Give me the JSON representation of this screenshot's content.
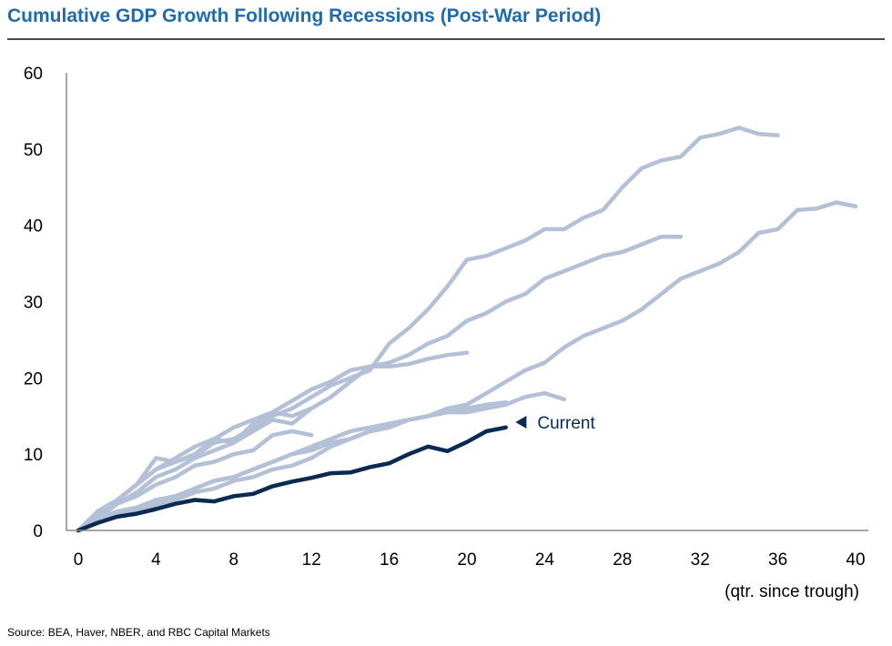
{
  "title": "Cumulative GDP Growth Following Recessions (Post-War Period)",
  "source": "Source: BEA, Haver, NBER, and RBC Capital Markets",
  "chart_data": {
    "type": "line",
    "title": "Cumulative GDP Growth Following Recessions (Post-War Period)",
    "xlabel": "(qtr. since trough)",
    "ylabel": "",
    "xlim": [
      0,
      40
    ],
    "ylim": [
      0,
      60
    ],
    "x_ticks": [
      0,
      4,
      8,
      12,
      16,
      20,
      24,
      28,
      32,
      36,
      40
    ],
    "y_ticks": [
      0,
      10,
      20,
      30,
      40,
      50,
      60
    ],
    "grid": false,
    "legend": "none",
    "colors": {
      "past_recoveries": "#b4c0d6",
      "current": "#0b2a52",
      "title": "#1f6bb0"
    },
    "annotation": {
      "text": "Current",
      "x": 22.5,
      "y": 14.2
    },
    "series": [
      {
        "style": "past",
        "x": [
          0,
          1,
          2,
          3,
          4,
          5,
          6,
          7,
          8,
          9,
          10,
          11,
          12,
          13,
          14,
          15,
          16,
          17,
          18,
          19,
          20,
          21,
          22,
          23,
          24,
          25,
          26,
          27,
          28,
          29,
          30,
          31,
          32,
          33,
          34,
          35,
          36
        ],
        "y": [
          0,
          2,
          4,
          6,
          8,
          9,
          9.8,
          11.5,
          12,
          13.5,
          15,
          16,
          17.5,
          19,
          20,
          21,
          24.5,
          26.5,
          29,
          32,
          35.5,
          36,
          37,
          38,
          39.5,
          39.5,
          41,
          42,
          45,
          47.5,
          48.5,
          49,
          51.5,
          52,
          52.8,
          52,
          51.8
        ]
      },
      {
        "style": "past",
        "x": [
          0,
          1,
          2,
          3,
          4,
          5,
          6,
          7,
          8,
          9,
          10,
          11,
          12,
          13,
          14,
          15,
          16,
          17,
          18,
          19,
          20,
          21,
          22,
          23,
          24,
          25,
          26,
          27,
          28,
          29,
          30,
          31
        ],
        "y": [
          0,
          2.5,
          4,
          6,
          8,
          9.5,
          11,
          12,
          13.5,
          14.5,
          15.5,
          17,
          18.5,
          19.5,
          21,
          21.5,
          22,
          23,
          24.5,
          25.5,
          27.5,
          28.5,
          30,
          31,
          33,
          34,
          35,
          36,
          36.5,
          37.5,
          38.5,
          38.5
        ]
      },
      {
        "style": "past",
        "x": [
          0,
          1,
          2,
          3,
          4,
          5,
          6,
          7,
          8,
          9,
          10,
          11,
          12,
          13,
          14,
          15,
          16,
          17,
          18,
          19,
          20,
          21,
          22,
          23,
          24,
          25,
          26,
          27,
          28,
          29,
          30,
          31,
          32,
          33,
          34,
          35,
          36,
          37,
          38,
          39,
          40
        ],
        "y": [
          0,
          1,
          2,
          2.5,
          3,
          4,
          5,
          5.5,
          6.5,
          7,
          8,
          8.5,
          9.5,
          11,
          12,
          13,
          13.5,
          14.5,
          15,
          16,
          16.5,
          18,
          19.5,
          21,
          22,
          24,
          25.5,
          26.5,
          27.5,
          29,
          31,
          33,
          34,
          35,
          36.5,
          39,
          39.5,
          42,
          42.2,
          43,
          42.5
        ]
      },
      {
        "style": "past",
        "x": [
          0,
          1,
          2,
          3,
          4,
          5,
          6,
          7,
          8,
          9,
          10,
          11,
          12,
          13,
          14,
          15,
          16,
          17,
          18,
          19,
          20,
          21,
          22,
          23,
          24,
          25
        ],
        "y": [
          0,
          1.5,
          2.5,
          3,
          4,
          4.5,
          5.5,
          6.5,
          7,
          8,
          9,
          10,
          11,
          12,
          13,
          13.5,
          14,
          14.5,
          15,
          15.5,
          15.5,
          16,
          16.5,
          17.5,
          18,
          17.2
        ]
      },
      {
        "style": "past",
        "x": [
          0,
          1,
          2,
          3,
          4,
          5,
          6,
          7,
          8,
          9,
          10,
          11,
          12,
          13,
          14,
          15,
          16,
          17,
          18,
          19,
          20
        ],
        "y": [
          0,
          2,
          3.5,
          5,
          7,
          8,
          9.5,
          10.5,
          11.5,
          13,
          14.5,
          14,
          16,
          17.5,
          19.5,
          21.5,
          21.5,
          21.8,
          22.5,
          23,
          23.3
        ]
      },
      {
        "style": "past",
        "x": [
          0,
          1,
          2,
          3,
          4,
          5,
          6,
          7,
          8,
          9,
          10,
          11,
          12
        ],
        "y": [
          0,
          2,
          4,
          6,
          9.5,
          9,
          10,
          12,
          11.5,
          14,
          15.5,
          15,
          16
        ]
      },
      {
        "style": "past",
        "x": [
          0,
          1,
          2,
          3,
          4,
          5,
          6,
          7,
          8,
          9,
          10,
          11,
          12
        ],
        "y": [
          0,
          1.5,
          3.5,
          4.5,
          6,
          7,
          8.5,
          9,
          10,
          10.5,
          12.5,
          13,
          12.5
        ]
      },
      {
        "style": "past",
        "x": [
          0,
          1,
          2,
          3,
          4,
          5,
          6,
          7,
          8,
          9,
          10,
          11,
          12,
          13,
          14,
          15,
          16,
          17,
          18,
          19,
          20,
          21,
          22
        ],
        "y": [
          0,
          1,
          2,
          3,
          3.5,
          4,
          5.5,
          6.5,
          7,
          8,
          9,
          10,
          10.5,
          11.5,
          12,
          13,
          13.5,
          14.5,
          15,
          15.5,
          16,
          16.5,
          16.8
        ]
      },
      {
        "style": "current",
        "x": [
          0,
          1,
          2,
          3,
          4,
          5,
          6,
          7,
          8,
          9,
          10,
          11,
          12,
          13,
          14,
          15,
          16,
          17,
          18,
          19,
          20,
          21,
          22
        ],
        "y": [
          0,
          1,
          1.8,
          2.2,
          2.8,
          3.5,
          4,
          3.8,
          4.5,
          4.8,
          5.8,
          6.4,
          6.9,
          7.5,
          7.6,
          8.3,
          8.8,
          10,
          11,
          10.4,
          11.6,
          13,
          13.5
        ]
      }
    ]
  }
}
